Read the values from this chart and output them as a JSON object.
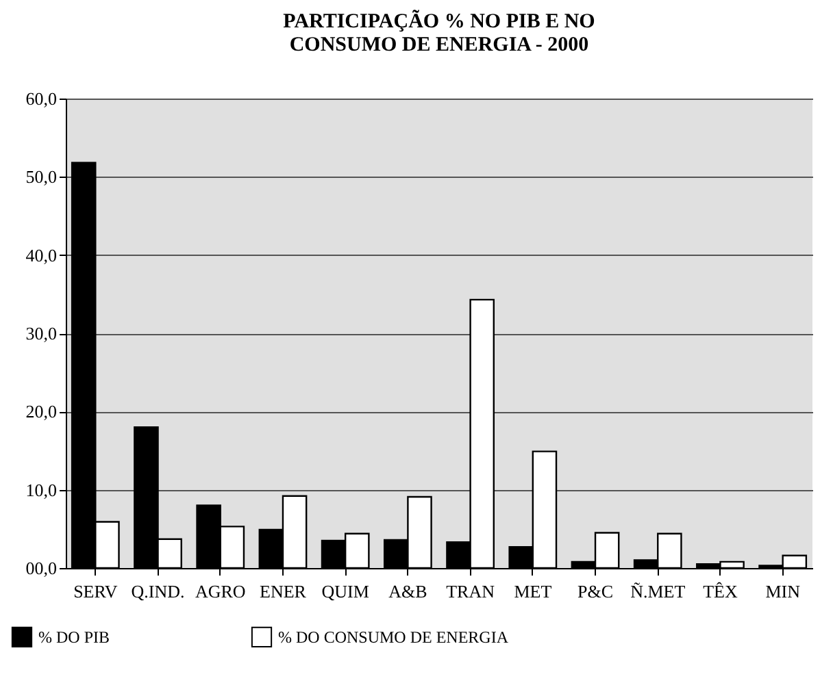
{
  "chart_data": {
    "type": "bar",
    "title": "PARTICIPAÇÃO % NO PIB E NO CONSUMO DE ENERGIA - 2000",
    "categories": [
      "SERV",
      "Q.IND.",
      "AGRO",
      "ENER",
      "QUIM",
      "A&B",
      "TRAN",
      "MET",
      "P&C",
      "Ñ.MET",
      "TÊX",
      "MIN"
    ],
    "series": [
      {
        "name": "% DO PIB",
        "color": "#000000",
        "values": [
          51.8,
          18.0,
          8.0,
          4.9,
          3.5,
          3.6,
          3.3,
          2.7,
          0.8,
          1.0,
          0.5,
          0.3
        ]
      },
      {
        "name": "% DO CONSUMO DE ENERGIA",
        "color": "#ffffff",
        "values": [
          5.9,
          3.7,
          5.3,
          9.2,
          4.4,
          9.1,
          34.3,
          14.9,
          4.5,
          4.4,
          0.8,
          1.6
        ]
      }
    ],
    "ylim": [
      0,
      60
    ],
    "yticks": [
      {
        "value": 0,
        "label": "00,0"
      },
      {
        "value": 10,
        "label": "10,0"
      },
      {
        "value": 20,
        "label": "20,0"
      },
      {
        "value": 30,
        "label": "30,0"
      },
      {
        "value": 40,
        "label": "40,0"
      },
      {
        "value": 50,
        "label": "50,0"
      },
      {
        "value": 60,
        "label": "60,0"
      }
    ],
    "grid": "y",
    "legend": "bottom left"
  }
}
